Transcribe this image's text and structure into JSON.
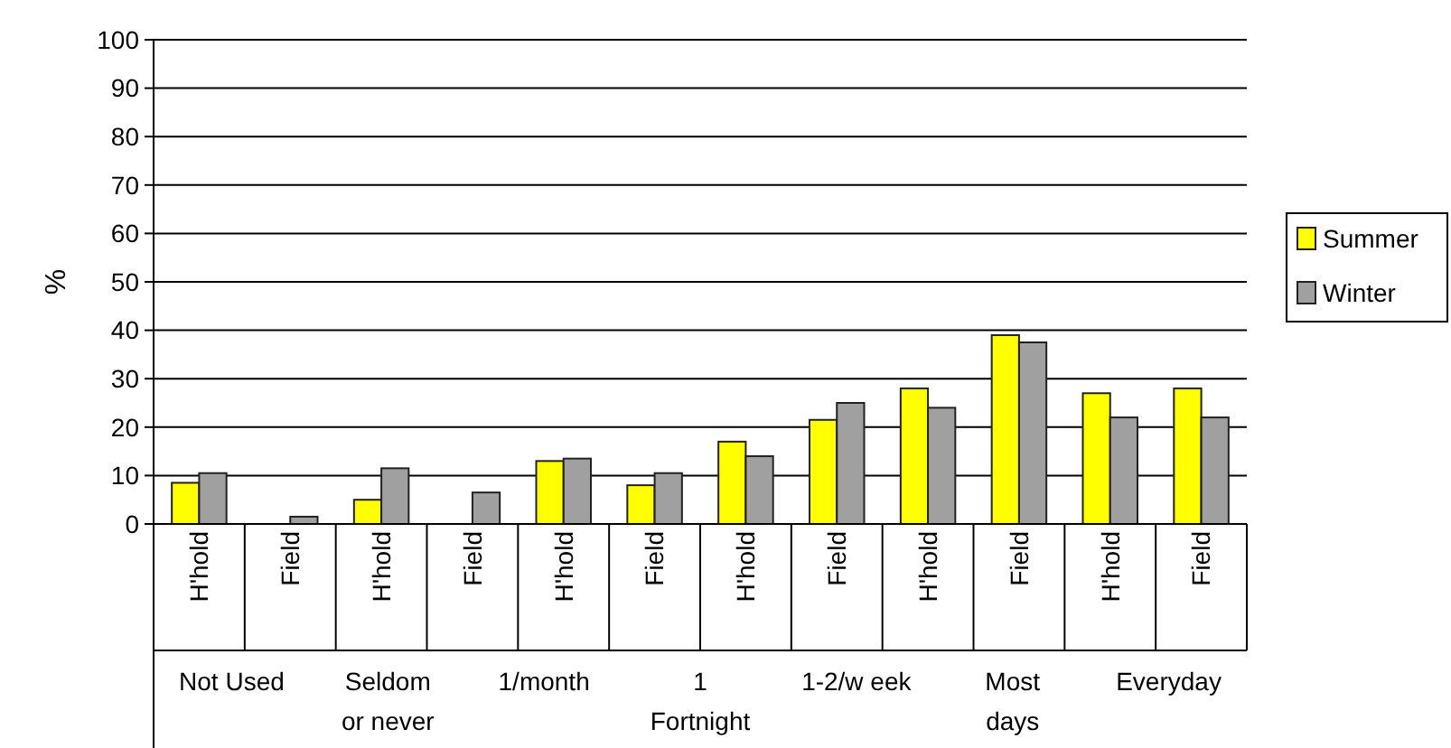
{
  "chart_data": {
    "type": "bar",
    "ylabel": "%",
    "categories": [
      "H'hold",
      "Field",
      "H'hold",
      "Field",
      "H'hold",
      "Field",
      "H'hold",
      "Field",
      "H'hold",
      "Field",
      "H'hold",
      "Field"
    ],
    "series": [
      {
        "name": "Summer",
        "color": "#ffff00",
        "values": [
          8.5,
          0,
          5,
          null,
          13,
          8,
          17,
          21.5,
          28,
          39,
          27,
          28.0
        ]
      },
      {
        "name": "Winter",
        "color": "#a0a0a0",
        "values": [
          10.5,
          1.5,
          11.5,
          6.5,
          13.5,
          10.5,
          14,
          25,
          24,
          37.5,
          22,
          22
        ]
      }
    ],
    "annotations": [
      "Not Used",
      "Seldom or never",
      "1/month",
      "1 Fortnight",
      "1-2/w eek",
      "Most days",
      "Everyday"
    ],
    "ylim": [
      0,
      100
    ],
    "yticks": [
      0,
      10,
      20,
      30,
      40,
      50,
      60,
      70,
      80,
      90,
      100
    ],
    "grid": "y",
    "legend": "right"
  }
}
